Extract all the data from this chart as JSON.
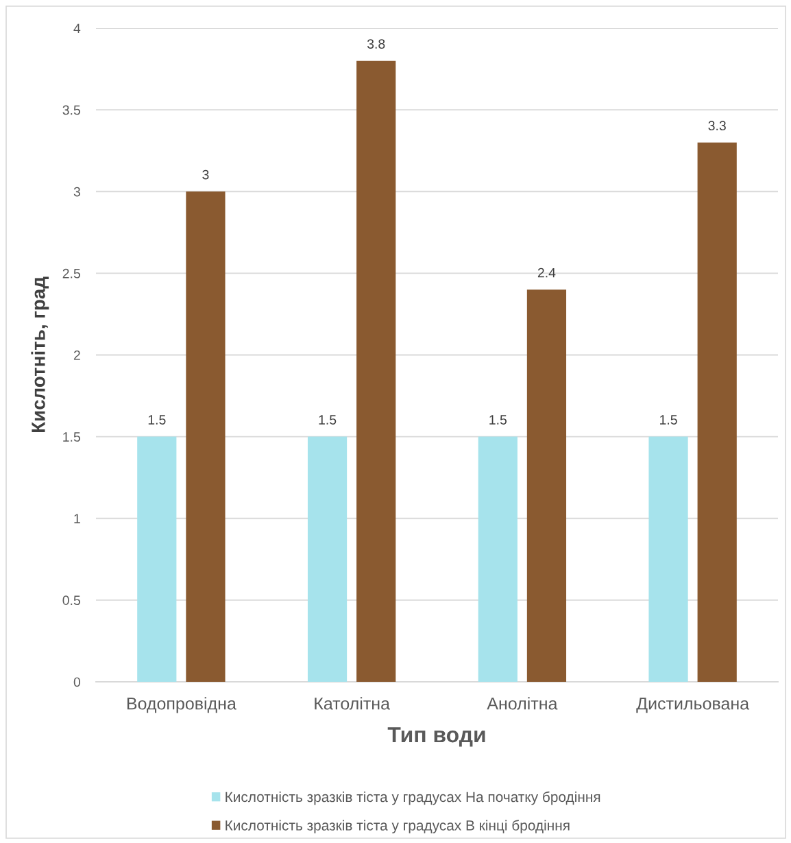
{
  "chart_data": {
    "type": "bar",
    "xlabel": "Тип води",
    "ylabel": "Кислотніть, град",
    "categories": [
      "Водопровідна",
      "Католітна",
      "Анолітна",
      "Дистильована"
    ],
    "series": [
      {
        "name": "Кислотність зразків тіста у градусах На початку бродіння",
        "color": "#a6e3ec",
        "values": [
          1.5,
          1.5,
          1.5,
          1.5
        ]
      },
      {
        "name": "Кислотність зразків тіста у градусах В кінці бродіння",
        "color": "#8a5a30",
        "values": [
          3,
          3.8,
          2.4,
          3.3
        ]
      }
    ],
    "ylim": [
      0,
      4
    ],
    "yticks": [
      0,
      0.5,
      1,
      1.5,
      2,
      2.5,
      3,
      3.5,
      4
    ],
    "grid": "y",
    "legend": "bottom",
    "data_labels": true
  }
}
